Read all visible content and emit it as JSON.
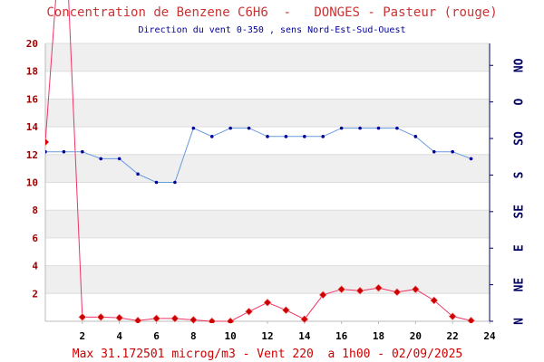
{
  "chart_data": {
    "type": "line",
    "title": "Concentration de Benzene C6H6  -   DONGES - Pasteur (rouge)",
    "subtitle": "Direction du vent 0-350 , sens Nord-Est-Sud-Ouest",
    "footer": "Max 31.172501 microg/m3 - Vent 220  a 1h00 - 02/09/2025",
    "x_ticks": [
      "2",
      "4",
      "6",
      "8",
      "10",
      "12",
      "14",
      "16",
      "18",
      "20",
      "22",
      "24"
    ],
    "y_ticks": [
      "2",
      "4",
      "6",
      "8",
      "10",
      "12",
      "14",
      "16",
      "18",
      "20"
    ],
    "right_ticks": [
      "N",
      "NE",
      "E",
      "SE",
      "S",
      "SO",
      "O",
      "NO"
    ],
    "xlim": [
      0,
      24
    ],
    "ylim": [
      0,
      20
    ],
    "grid": true,
    "series": [
      {
        "color": "#ee3366",
        "marker_color": "#cc0000",
        "x": [
          0,
          1,
          2,
          3,
          4,
          5,
          6,
          7,
          8,
          9,
          10,
          11,
          12,
          13,
          14,
          15,
          16,
          17,
          18,
          19,
          20,
          21,
          22,
          23
        ],
        "values": [
          12.9,
          31.17,
          0.3,
          0.3,
          0.25,
          0.05,
          0.2,
          0.2,
          0.1,
          0.0,
          0.0,
          0.7,
          1.35,
          0.8,
          0.15,
          1.9,
          2.3,
          2.2,
          2.4,
          2.1,
          2.3,
          1.5,
          0.35,
          0.05
        ]
      },
      {
        "color": "#6699dd",
        "marker_color": "#000099",
        "x": [
          0,
          1,
          2,
          3,
          4,
          5,
          6,
          7,
          8,
          9,
          10,
          11,
          12,
          13,
          14,
          15,
          16,
          17,
          18,
          19,
          20,
          21,
          22,
          23
        ],
        "values": [
          12.2,
          12.2,
          12.2,
          11.7,
          11.7,
          10.6,
          10.0,
          10.0,
          13.9,
          13.3,
          13.9,
          13.9,
          13.3,
          13.3,
          13.3,
          13.3,
          13.9,
          13.9,
          13.9,
          13.9,
          13.3,
          12.2,
          12.2,
          11.7
        ]
      }
    ]
  }
}
